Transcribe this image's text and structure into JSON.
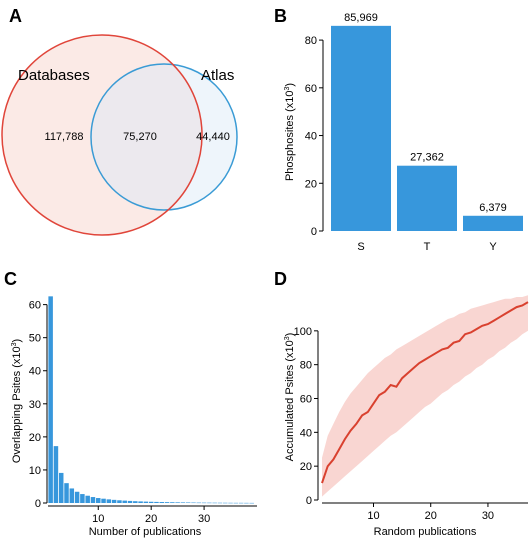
{
  "colors": {
    "databases_circle": "#e0453a",
    "databases_fill": "#fbeae6",
    "atlas_circle": "#3a9bd5",
    "atlas_fill": "#eef5fb",
    "overlap_fill": "#ece9ee",
    "bar": "#3797dc",
    "line": "#d9412f",
    "band": "#f9d6d2"
  },
  "panel_labels": [
    "A",
    "B",
    "C",
    "D"
  ],
  "chart_data": [
    {
      "panel": "A",
      "type": "venn",
      "sets": [
        "Databases",
        "Atlas"
      ],
      "regions": {
        "databases_only": "117,788",
        "overlap": "75,270",
        "atlas_only": "44,440"
      }
    },
    {
      "panel": "B",
      "type": "bar",
      "categories": [
        "S",
        "T",
        "Y"
      ],
      "values": [
        85.969,
        27.362,
        6.379
      ],
      "data_labels": [
        "85,969",
        "27,362",
        "6,379"
      ],
      "ylabel": "Phosphosites (x10",
      "ylabel_sup": "3",
      "ylabel_close": ")",
      "ylim": [
        0,
        88
      ],
      "yticks": [
        0,
        20,
        40,
        60,
        80
      ],
      "grid": false
    },
    {
      "panel": "C",
      "type": "bar",
      "x": [
        1,
        2,
        3,
        4,
        5,
        6,
        7,
        8,
        9,
        10,
        11,
        12,
        13,
        14,
        15,
        16,
        17,
        18,
        19,
        20,
        21,
        22,
        23,
        24,
        25,
        26,
        27,
        28,
        29,
        30,
        31,
        32,
        33,
        34,
        35,
        36,
        37,
        38,
        39
      ],
      "values": [
        62.5,
        17.2,
        9.1,
        6.0,
        4.4,
        3.4,
        2.7,
        2.2,
        1.8,
        1.5,
        1.3,
        1.1,
        0.95,
        0.82,
        0.72,
        0.63,
        0.55,
        0.48,
        0.42,
        0.37,
        0.33,
        0.29,
        0.26,
        0.23,
        0.2,
        0.18,
        0.16,
        0.14,
        0.12,
        0.11,
        0.1,
        0.09,
        0.08,
        0.07,
        0.06,
        0.05,
        0.05,
        0.04,
        0.03
      ],
      "xlabel": "Number of publications",
      "ylabel": "Overlapping Psites (x10",
      "ylabel_sup": "3",
      "ylabel_close": ")",
      "xlim": [
        0.5,
        40
      ],
      "ylim": [
        0,
        62
      ],
      "xticks": [
        10,
        20,
        30
      ],
      "yticks": [
        0,
        10,
        20,
        30,
        40,
        50,
        60
      ],
      "grid": false
    },
    {
      "panel": "D",
      "type": "line",
      "x": [
        1,
        2,
        3,
        4,
        5,
        6,
        7,
        8,
        9,
        10,
        11,
        12,
        13,
        14,
        15,
        16,
        17,
        18,
        19,
        20,
        21,
        22,
        23,
        24,
        25,
        26,
        27,
        28,
        29,
        30,
        31,
        32,
        33,
        34,
        35,
        36,
        37
      ],
      "y": [
        10,
        20,
        24,
        30,
        36,
        41,
        45,
        50,
        52,
        57,
        62,
        64,
        68,
        67,
        72,
        75,
        78,
        81,
        83,
        85,
        87,
        89,
        90,
        93,
        94,
        98,
        99,
        101,
        103,
        104,
        106,
        108,
        110,
        112,
        114,
        115,
        117
      ],
      "band_low": [
        2,
        5,
        8,
        11,
        14,
        17,
        20,
        23,
        26,
        29,
        32,
        35,
        38,
        40,
        43,
        46,
        49,
        52,
        55,
        57,
        60,
        63,
        65,
        68,
        70,
        73,
        75,
        78,
        80,
        83,
        85,
        88,
        90,
        93,
        95,
        98,
        100
      ],
      "band_high": [
        25,
        38,
        45,
        52,
        58,
        63,
        67,
        71,
        75,
        78,
        81,
        84,
        86,
        89,
        91,
        93,
        95,
        97,
        99,
        101,
        103,
        105,
        107,
        108,
        110,
        111,
        113,
        114,
        115,
        116,
        117,
        118,
        119,
        119,
        120,
        120,
        121
      ],
      "xlabel": "Random publications",
      "ylabel": "Accumulated Psites (x10",
      "ylabel_sup": "3",
      "ylabel_close": ")",
      "xlim": [
        1,
        37
      ],
      "ylim": [
        0,
        120
      ],
      "xticks": [
        10,
        20,
        30
      ],
      "yticks": [
        0,
        20,
        40,
        60,
        80,
        100
      ],
      "grid": false
    }
  ]
}
